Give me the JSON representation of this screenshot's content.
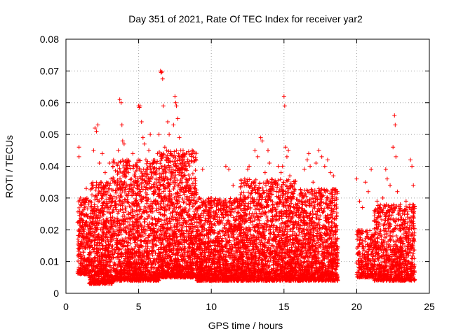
{
  "chart_data": {
    "type": "scatter",
    "title": "Day 351 of 2021, Rate Of TEC Index for receiver yar2",
    "xlabel": "GPS time / hours",
    "ylabel": "ROTI / TECUs",
    "xlim": [
      0,
      25
    ],
    "ylim": [
      0,
      0.08
    ],
    "x_ticks": [
      0,
      5,
      10,
      15,
      20,
      25
    ],
    "x_tick_labels": [
      "0",
      "5",
      "10",
      "15",
      "20",
      "25"
    ],
    "y_ticks": [
      0,
      0.01,
      0.02,
      0.03,
      0.04,
      0.05,
      0.06,
      0.07,
      0.08
    ],
    "y_tick_labels": [
      "0",
      "0.01",
      "0.02",
      "0.03",
      "0.04",
      "0.05",
      "0.06",
      "0.07",
      "0.08"
    ],
    "grid": true,
    "marker": "plus",
    "color": "#ff0000",
    "series": [
      {
        "points": [
          [
            0.9,
            0.046
          ],
          [
            0.9,
            0.043
          ],
          [
            1.0,
            0.03
          ],
          [
            1.1,
            0.025
          ],
          [
            1.2,
            0.02
          ],
          [
            1.3,
            0.029
          ],
          [
            1.4,
            0.033
          ],
          [
            1.6,
            0.017
          ],
          [
            1.8,
            0.022
          ],
          [
            1.9,
            0.045
          ],
          [
            2.0,
            0.052
          ],
          [
            2.1,
            0.051
          ],
          [
            2.2,
            0.053
          ],
          [
            2.3,
            0.041
          ],
          [
            2.4,
            0.035
          ],
          [
            2.5,
            0.044
          ],
          [
            2.6,
            0.033
          ],
          [
            2.7,
            0.038
          ],
          [
            2.8,
            0.031
          ],
          [
            2.9,
            0.027
          ],
          [
            3.0,
            0.041
          ],
          [
            3.1,
            0.036
          ],
          [
            3.2,
            0.024
          ],
          [
            3.4,
            0.035
          ],
          [
            3.5,
            0.03
          ],
          [
            3.6,
            0.045
          ],
          [
            3.7,
            0.061
          ],
          [
            3.8,
            0.06
          ],
          [
            3.85,
            0.053
          ],
          [
            3.9,
            0.048
          ],
          [
            4.0,
            0.047
          ],
          [
            4.2,
            0.042
          ],
          [
            4.3,
            0.038
          ],
          [
            4.5,
            0.036
          ],
          [
            4.6,
            0.044
          ],
          [
            4.7,
            0.037
          ],
          [
            4.8,
            0.029
          ],
          [
            4.9,
            0.034
          ],
          [
            5.0,
            0.059
          ],
          [
            5.05,
            0.0585
          ],
          [
            5.1,
            0.059
          ],
          [
            5.2,
            0.054
          ],
          [
            5.3,
            0.049
          ],
          [
            5.4,
            0.047
          ],
          [
            5.5,
            0.042
          ],
          [
            5.6,
            0.039
          ],
          [
            5.7,
            0.045
          ],
          [
            5.8,
            0.05
          ],
          [
            5.9,
            0.038
          ],
          [
            6.0,
            0.041
          ],
          [
            6.2,
            0.036
          ],
          [
            6.3,
            0.044
          ],
          [
            6.4,
            0.05
          ],
          [
            6.5,
            0.07
          ],
          [
            6.55,
            0.0695
          ],
          [
            6.6,
            0.0697
          ],
          [
            6.65,
            0.0675
          ],
          [
            6.7,
            0.059
          ],
          [
            6.8,
            0.046
          ],
          [
            6.9,
            0.042
          ],
          [
            7.0,
            0.054
          ],
          [
            7.1,
            0.05
          ],
          [
            7.2,
            0.044
          ],
          [
            7.3,
            0.038
          ],
          [
            7.4,
            0.053
          ],
          [
            7.5,
            0.062
          ],
          [
            7.55,
            0.06
          ],
          [
            7.6,
            0.059
          ],
          [
            7.7,
            0.055
          ],
          [
            7.8,
            0.049
          ],
          [
            7.9,
            0.045
          ],
          [
            8.0,
            0.043
          ],
          [
            8.1,
            0.037
          ],
          [
            8.2,
            0.041
          ],
          [
            8.3,
            0.033
          ],
          [
            8.5,
            0.036
          ],
          [
            8.6,
            0.032
          ],
          [
            8.8,
            0.031
          ],
          [
            9.0,
            0.029
          ],
          [
            9.2,
            0.03
          ],
          [
            9.4,
            0.039
          ],
          [
            9.6,
            0.028
          ],
          [
            9.8,
            0.026
          ],
          [
            10.0,
            0.03
          ],
          [
            10.2,
            0.028
          ],
          [
            10.5,
            0.026
          ],
          [
            10.8,
            0.025
          ],
          [
            11.0,
            0.04
          ],
          [
            11.2,
            0.039
          ],
          [
            11.5,
            0.034
          ],
          [
            11.8,
            0.029
          ],
          [
            12.0,
            0.031
          ],
          [
            12.3,
            0.036
          ],
          [
            12.5,
            0.039
          ],
          [
            12.6,
            0.04
          ],
          [
            12.8,
            0.033
          ],
          [
            13.0,
            0.045
          ],
          [
            13.2,
            0.043
          ],
          [
            13.4,
            0.049
          ],
          [
            13.5,
            0.048
          ],
          [
            13.7,
            0.038
          ],
          [
            13.9,
            0.045
          ],
          [
            14.0,
            0.041
          ],
          [
            14.1,
            0.033
          ],
          [
            14.2,
            0.029
          ],
          [
            14.4,
            0.035
          ],
          [
            14.5,
            0.028
          ],
          [
            14.6,
            0.04
          ],
          [
            14.8,
            0.038
          ],
          [
            14.9,
            0.04
          ],
          [
            15.0,
            0.062
          ],
          [
            15.05,
            0.059
          ],
          [
            15.1,
            0.046
          ],
          [
            15.2,
            0.043
          ],
          [
            15.3,
            0.045
          ],
          [
            15.4,
            0.037
          ],
          [
            15.5,
            0.034
          ],
          [
            15.6,
            0.031
          ],
          [
            15.8,
            0.028
          ],
          [
            16.0,
            0.026
          ],
          [
            16.2,
            0.029
          ],
          [
            16.4,
            0.039
          ],
          [
            16.6,
            0.042
          ],
          [
            16.7,
            0.044
          ],
          [
            16.8,
            0.04
          ],
          [
            17.0,
            0.035
          ],
          [
            17.2,
            0.041
          ],
          [
            17.4,
            0.045
          ],
          [
            17.6,
            0.043
          ],
          [
            17.8,
            0.04
          ],
          [
            18.0,
            0.042
          ],
          [
            18.2,
            0.038
          ],
          [
            18.4,
            0.037
          ],
          [
            18.6,
            0.028
          ],
          [
            20.0,
            0.036
          ],
          [
            20.2,
            0.029
          ],
          [
            20.4,
            0.027
          ],
          [
            20.6,
            0.035
          ],
          [
            20.8,
            0.032
          ],
          [
            21.0,
            0.039
          ],
          [
            21.2,
            0.023
          ],
          [
            21.4,
            0.029
          ],
          [
            21.6,
            0.027
          ],
          [
            21.8,
            0.03
          ],
          [
            22.0,
            0.039
          ],
          [
            22.1,
            0.036
          ],
          [
            22.3,
            0.034
          ],
          [
            22.5,
            0.046
          ],
          [
            22.6,
            0.056
          ],
          [
            22.65,
            0.053
          ],
          [
            22.7,
            0.043
          ],
          [
            22.8,
            0.032
          ],
          [
            23.0,
            0.028
          ],
          [
            23.2,
            0.026
          ],
          [
            23.4,
            0.029
          ],
          [
            23.5,
            0.024
          ],
          [
            23.7,
            0.042
          ],
          [
            23.8,
            0.04
          ],
          [
            23.9,
            0.034
          ]
        ]
      }
    ],
    "dense_bands": [
      {
        "x_range": [
          0.8,
          1.6
        ],
        "y_range": [
          0.006,
          0.03
        ],
        "count": 260
      },
      {
        "x_range": [
          1.6,
          3.2
        ],
        "y_range": [
          0.003,
          0.035
        ],
        "count": 720
      },
      {
        "x_range": [
          3.2,
          6.4
        ],
        "y_range": [
          0.004,
          0.042
        ],
        "count": 1400
      },
      {
        "x_range": [
          6.4,
          9.0
        ],
        "y_range": [
          0.005,
          0.045
        ],
        "count": 1250
      },
      {
        "x_range": [
          9.0,
          12.0
        ],
        "y_range": [
          0.004,
          0.03
        ],
        "count": 1300
      },
      {
        "x_range": [
          12.0,
          15.8
        ],
        "y_range": [
          0.004,
          0.036
        ],
        "count": 1600
      },
      {
        "x_range": [
          15.8,
          18.7
        ],
        "y_range": [
          0.004,
          0.033
        ],
        "count": 1200
      },
      {
        "x_range": [
          20.0,
          21.2
        ],
        "y_range": [
          0.005,
          0.02
        ],
        "count": 260
      },
      {
        "x_range": [
          21.2,
          24.0
        ],
        "y_range": [
          0.004,
          0.028
        ],
        "count": 900
      }
    ]
  }
}
